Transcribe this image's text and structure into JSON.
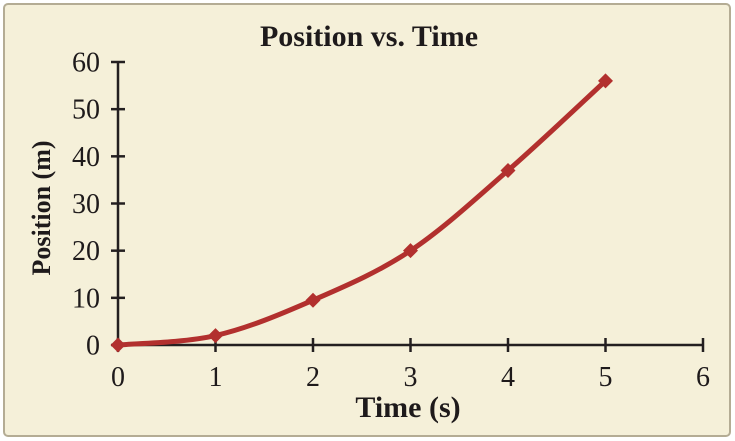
{
  "panel": {
    "background_color": "#f5f0d9",
    "border_color": "#b4ac94",
    "outer_background": "#ffffff"
  },
  "chart_data": {
    "type": "line",
    "title": "Position vs. Time",
    "xlabel": "Time (s)",
    "ylabel": "Position (m)",
    "x": [
      0,
      1,
      2,
      3,
      4,
      5
    ],
    "values": [
      0,
      2,
      9.5,
      20,
      37,
      56
    ],
    "xlim": [
      0,
      6
    ],
    "ylim": [
      0,
      60
    ],
    "xticks": [
      0,
      1,
      2,
      3,
      4,
      5,
      6
    ],
    "yticks": [
      0,
      10,
      20,
      30,
      40,
      50,
      60
    ],
    "grid": false,
    "legend": "none",
    "marker": "diamond",
    "line_color": "#b2302e",
    "axis_color": "#231f20",
    "text_color": "#1e1a1b"
  }
}
